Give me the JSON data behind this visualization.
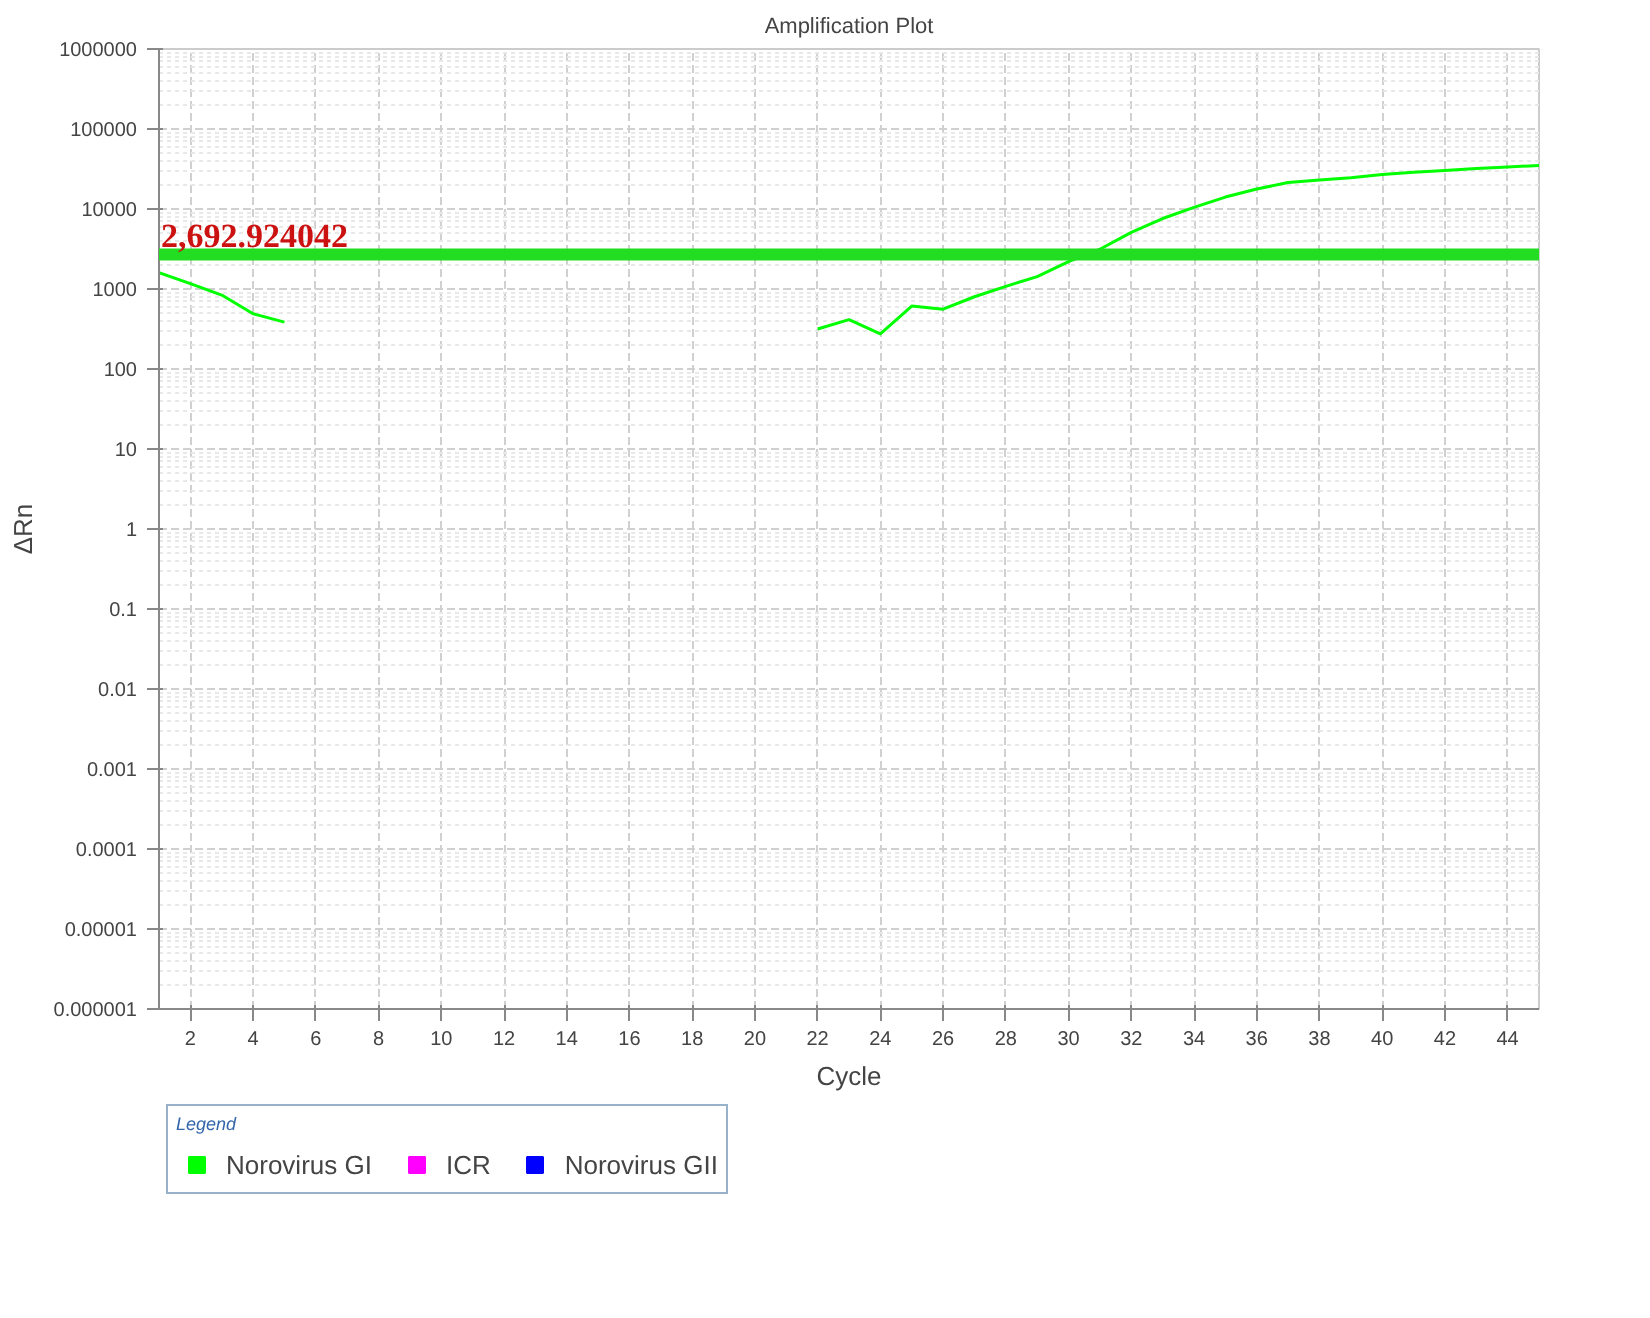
{
  "chart_data": {
    "type": "line",
    "title": "Amplification Plot",
    "xlabel": "Cycle",
    "ylabel": "ΔRn",
    "legend_title": "Legend",
    "x": [
      1,
      2,
      3,
      4,
      5,
      6,
      7,
      8,
      9,
      10,
      11,
      12,
      13,
      14,
      15,
      16,
      17,
      18,
      19,
      20,
      21,
      22,
      23,
      24,
      25,
      26,
      27,
      28,
      29,
      30,
      31,
      32,
      33,
      34,
      35,
      36,
      37,
      38,
      39,
      40,
      41,
      42,
      43,
      44,
      45
    ],
    "series": [
      {
        "name": "Norovirus GI",
        "color": "#00ff00",
        "values": [
          1600,
          1170,
          840,
          490,
          385,
          null,
          null,
          null,
          null,
          null,
          null,
          null,
          null,
          null,
          null,
          null,
          null,
          null,
          null,
          null,
          null,
          316,
          414,
          275,
          611,
          560,
          800,
          1080,
          1430,
          2200,
          3140,
          5100,
          7600,
          10500,
          14100,
          17800,
          21400,
          23000,
          24600,
          27000,
          28700,
          30300,
          32000,
          33500,
          35000
        ]
      },
      {
        "name": "ICR",
        "color": "#ff00ff",
        "values": [
          null,
          null,
          null,
          null,
          null,
          null,
          null,
          null,
          null,
          null,
          null,
          null,
          null,
          null,
          null,
          null,
          null,
          null,
          null,
          null,
          null,
          null,
          null,
          null,
          null,
          null,
          null,
          null,
          null,
          null,
          null,
          null,
          null,
          null,
          null,
          null,
          null,
          null,
          null,
          null,
          null,
          null,
          null,
          null,
          null
        ]
      },
      {
        "name": "Norovirus GII",
        "color": "#0000ff",
        "values": [
          null,
          null,
          null,
          null,
          null,
          null,
          null,
          null,
          null,
          null,
          null,
          null,
          null,
          null,
          null,
          null,
          null,
          null,
          null,
          null,
          null,
          null,
          null,
          null,
          null,
          null,
          null,
          null,
          null,
          null,
          null,
          null,
          null,
          null,
          null,
          null,
          null,
          null,
          null,
          null,
          null,
          null,
          null,
          null,
          null
        ]
      }
    ],
    "xlim": [
      1,
      45
    ],
    "ylim": [
      1e-06,
      1000000
    ],
    "xticks": [
      2,
      4,
      6,
      8,
      10,
      12,
      14,
      16,
      18,
      20,
      22,
      24,
      26,
      28,
      30,
      32,
      34,
      36,
      38,
      40,
      42,
      44
    ],
    "yticks": [
      {
        "value": 1e-06,
        "label": "0.000001"
      },
      {
        "value": 1e-05,
        "label": "0.00001"
      },
      0.0001,
      0.001,
      0.01,
      0.1,
      1,
      10,
      100,
      1000,
      10000,
      100000,
      1000000
    ],
    "log": "y",
    "grid": true,
    "legend": "bottom",
    "line_style": "solid",
    "ref_lines": [
      {
        "axis": "y",
        "value": 2692.924042,
        "label": "2,692.924042",
        "color": "#22dd22"
      }
    ]
  }
}
